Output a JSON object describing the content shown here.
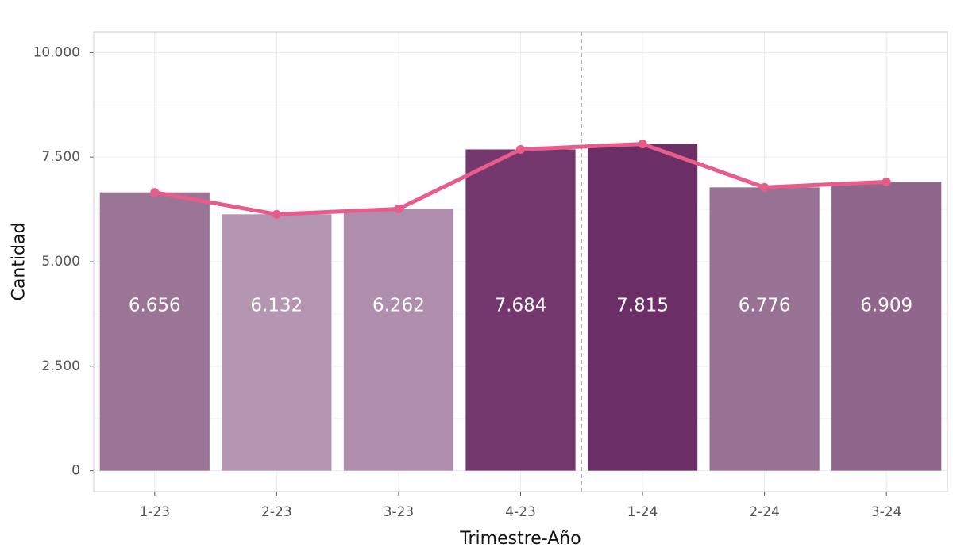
{
  "chart_data": {
    "type": "bar",
    "categories": [
      "1-23",
      "2-23",
      "3-23",
      "4-23",
      "1-24",
      "2-24",
      "3-24"
    ],
    "values": [
      6656,
      6132,
      6262,
      7684,
      7815,
      6776,
      6909
    ],
    "value_labels": [
      "6.656",
      "6.132",
      "6.262",
      "7.684",
      "7.815",
      "6.776",
      "6.909"
    ],
    "bar_colors": [
      "#9a7596",
      "#b596b2",
      "#af8ead",
      "#74386e",
      "#6b2e66",
      "#987294",
      "#91668d"
    ],
    "line": {
      "values": [
        6656,
        6132,
        6262,
        7684,
        7815,
        6776,
        6909
      ],
      "color": "#e85c8a"
    },
    "xlabel": "Trimestre-Año",
    "ylabel": "Cantidad",
    "ylim": [
      -500,
      10500
    ],
    "yticks": [
      0,
      2500,
      5000,
      7500,
      10000
    ],
    "ytick_labels": [
      "0",
      "2.500",
      "5.000",
      "7.500",
      "10.000"
    ],
    "reference_line_between": [
      "4-23",
      "1-24"
    ],
    "grid": true
  }
}
